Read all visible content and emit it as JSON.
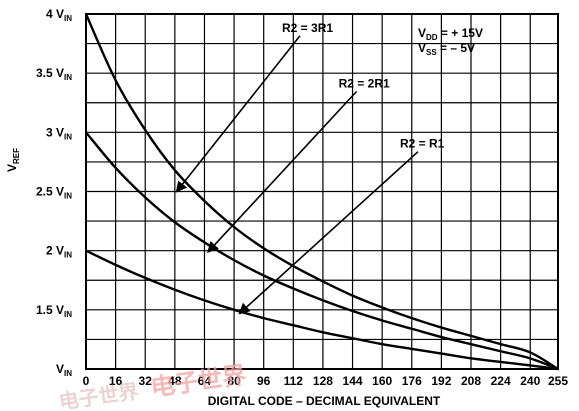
{
  "chart_data": {
    "type": "line",
    "title": "",
    "xlabel": "DIGITAL CODE – DECIMAL EQUIVALENT",
    "ylabel": "V_REF",
    "ylabel_main": "V",
    "ylabel_sub": "REF",
    "xlim": [
      0,
      255
    ],
    "ylim": [
      1,
      4
    ],
    "grid": true,
    "x_ticks": [
      "0",
      "16",
      "32",
      "48",
      "64",
      "80",
      "96",
      "112",
      "128",
      "144",
      "160",
      "176",
      "192",
      "208",
      "224",
      "240",
      "255"
    ],
    "x_tick_values": [
      0,
      16,
      32,
      48,
      64,
      80,
      96,
      112,
      128,
      144,
      160,
      176,
      192,
      208,
      224,
      240,
      255
    ],
    "y_ticks": [
      {
        "value": 1,
        "main": "V",
        "sub": "IN"
      },
      {
        "value": 1.5,
        "main": "1.5 V",
        "sub": "IN"
      },
      {
        "value": 2,
        "main": "2 V",
        "sub": "IN"
      },
      {
        "value": 2.5,
        "main": "2.5 V",
        "sub": "IN"
      },
      {
        "value": 3,
        "main": "3 V",
        "sub": "IN"
      },
      {
        "value": 3.5,
        "main": "3.5 V",
        "sub": "IN"
      },
      {
        "value": 4,
        "main": "4 V",
        "sub": "IN"
      }
    ],
    "series": [
      {
        "name": "R2 = 3R1",
        "x": [
          0,
          16,
          32,
          48,
          64,
          80,
          96,
          112,
          128,
          144,
          160,
          176,
          192,
          208,
          224,
          240,
          255
        ],
        "y": [
          4.0,
          3.44,
          3.02,
          2.68,
          2.42,
          2.2,
          2.02,
          1.87,
          1.74,
          1.62,
          1.52,
          1.43,
          1.35,
          1.28,
          1.21,
          1.14,
          1.0
        ]
      },
      {
        "name": "R2 = 2R1",
        "x": [
          0,
          16,
          32,
          48,
          64,
          80,
          96,
          112,
          128,
          144,
          160,
          176,
          192,
          208,
          224,
          240,
          255
        ],
        "y": [
          3.0,
          2.7,
          2.45,
          2.24,
          2.07,
          1.92,
          1.79,
          1.68,
          1.58,
          1.49,
          1.41,
          1.34,
          1.27,
          1.21,
          1.15,
          1.09,
          1.0
        ]
      },
      {
        "name": "R2 = R1",
        "x": [
          0,
          16,
          32,
          48,
          64,
          80,
          96,
          112,
          128,
          144,
          160,
          176,
          192,
          208,
          224,
          240,
          255
        ],
        "y": [
          2.0,
          1.88,
          1.77,
          1.67,
          1.58,
          1.5,
          1.43,
          1.37,
          1.31,
          1.26,
          1.21,
          1.17,
          1.13,
          1.09,
          1.06,
          1.03,
          1.0
        ]
      }
    ],
    "annotations": [
      {
        "id": "vdd",
        "main": "V",
        "sub": "DD",
        "rest": " = + 15V"
      },
      {
        "id": "vss",
        "main": "V",
        "sub": "SS",
        "rest": " = – 5V"
      }
    ],
    "curve_labels": [
      {
        "series": 0,
        "text": "R2 = 3R1",
        "label_at": [
          0.5,
          3.85
        ],
        "arrow_to": [
          49,
          2.5
        ]
      },
      {
        "series": 1,
        "text": "R2 = 2R1",
        "label_at": [
          0.62,
          3.38
        ],
        "arrow_to": [
          66,
          1.99
        ]
      },
      {
        "series": 2,
        "text": "R2 = R1",
        "label_at": [
          0.75,
          2.87
        ],
        "arrow_to": [
          83,
          1.47
        ]
      }
    ]
  },
  "watermark": {
    "line1": "电子世界",
    "line2": "电子世界"
  }
}
